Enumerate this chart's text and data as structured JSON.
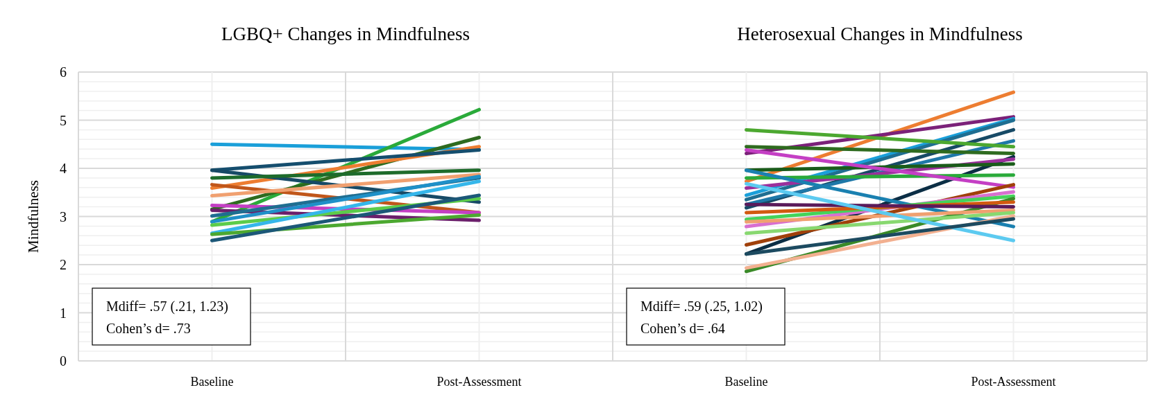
{
  "chart_data": [
    {
      "type": "line",
      "title": "LGBQ+  Changes  in Mindfulness",
      "ylabel": "Mindfulness",
      "categories": [
        "Baseline",
        "Post-Assessment"
      ],
      "ylim": [
        0,
        6
      ],
      "yticks": [
        0,
        1,
        2,
        3,
        4,
        5,
        6
      ],
      "grid": true,
      "annotations": [
        "Mdiff= .57 (.21, 1.23)",
        "Cohen’s d= .73"
      ],
      "series": [
        {
          "color": "#1a9fd9",
          "values": [
            4.5,
            4.39
          ]
        },
        {
          "color": "#2aaa3a",
          "values": [
            2.89,
            5.22
          ]
        },
        {
          "color": "#2e6b1f",
          "values": [
            3.15,
            4.64
          ]
        },
        {
          "color": "#ed7d31",
          "values": [
            3.59,
            4.45
          ]
        },
        {
          "color": "#154e6e",
          "values": [
            3.96,
            4.38
          ]
        },
        {
          "color": "#174a66",
          "values": [
            3.96,
            3.3
          ]
        },
        {
          "color": "#1d6b2b",
          "values": [
            3.8,
            3.96
          ]
        },
        {
          "color": "#c0561a",
          "values": [
            3.66,
            3.08
          ]
        },
        {
          "color": "#f0a070",
          "values": [
            3.43,
            3.87
          ]
        },
        {
          "color": "#c43fc4",
          "values": [
            3.23,
            3.08
          ]
        },
        {
          "color": "#6b1f6b",
          "values": [
            3.13,
            2.92
          ]
        },
        {
          "color": "#1f6e91",
          "values": [
            3.01,
            3.8
          ]
        },
        {
          "color": "#1f90c8",
          "values": [
            2.89,
            3.83
          ]
        },
        {
          "color": "#5ccc4a",
          "values": [
            2.82,
            3.37
          ]
        },
        {
          "color": "#35b6ea",
          "values": [
            2.65,
            3.73
          ]
        },
        {
          "color": "#4ca830",
          "values": [
            2.63,
            3.03
          ]
        },
        {
          "color": "#1c5878",
          "values": [
            2.5,
            3.44
          ]
        }
      ]
    },
    {
      "type": "line",
      "title": "Heterosexual  Changes  in Mindfulness",
      "categories": [
        "Baseline",
        "Post-Assessment"
      ],
      "ylim": [
        0,
        6
      ],
      "yticks": [
        0,
        1,
        2,
        3,
        4,
        5,
        6
      ],
      "tick_labels": "x",
      "grid": true,
      "annotations": [
        "Mdiff= .59 (.25, 1.02)",
        "Cohen’s d= .64"
      ],
      "series": [
        {
          "color": "#ed7d31",
          "values": [
            3.73,
            5.58
          ]
        },
        {
          "color": "#7b2179",
          "values": [
            4.31,
            5.07
          ]
        },
        {
          "color": "#1a9fd9",
          "values": [
            3.44,
            5.03
          ]
        },
        {
          "color": "#1f6e91",
          "values": [
            3.35,
            5.0
          ]
        },
        {
          "color": "#174a66",
          "values": [
            3.18,
            4.8
          ]
        },
        {
          "color": "#1f78a8",
          "values": [
            3.25,
            4.57
          ]
        },
        {
          "color": "#4ca830",
          "values": [
            4.8,
            4.45
          ]
        },
        {
          "color": "#2e6b1f",
          "values": [
            4.45,
            4.31
          ]
        },
        {
          "color": "#0b2e45",
          "values": [
            2.22,
            4.24
          ]
        },
        {
          "color": "#9b2f9b",
          "values": [
            3.59,
            4.19
          ]
        },
        {
          "color": "#1a5c1a",
          "values": [
            3.96,
            4.09
          ]
        },
        {
          "color": "#2aaa3a",
          "values": [
            3.8,
            3.86
          ]
        },
        {
          "color": "#1a80b0",
          "values": [
            3.96,
            2.79
          ]
        },
        {
          "color": "#c43fc4",
          "values": [
            4.38,
            3.61
          ]
        },
        {
          "color": "#a0400a",
          "values": [
            2.41,
            3.66
          ]
        },
        {
          "color": "#d86fd0",
          "values": [
            2.79,
            3.51
          ]
        },
        {
          "color": "#44d35a",
          "values": [
            2.94,
            3.42
          ]
        },
        {
          "color": "#3a8a28",
          "values": [
            1.86,
            3.37
          ]
        },
        {
          "color": "#d25a10",
          "values": [
            3.08,
            3.3
          ]
        },
        {
          "color": "#5a1a5a",
          "values": [
            3.25,
            3.2
          ]
        },
        {
          "color": "#f0a070",
          "values": [
            2.89,
            3.13
          ]
        },
        {
          "color": "#88d870",
          "values": [
            2.65,
            3.08
          ]
        },
        {
          "color": "#f2b090",
          "values": [
            1.93,
            3.01
          ]
        },
        {
          "color": "#5ccaf0",
          "values": [
            3.68,
            2.5
          ]
        },
        {
          "color": "#1c4a60",
          "values": [
            2.22,
            2.95
          ]
        }
      ]
    }
  ]
}
